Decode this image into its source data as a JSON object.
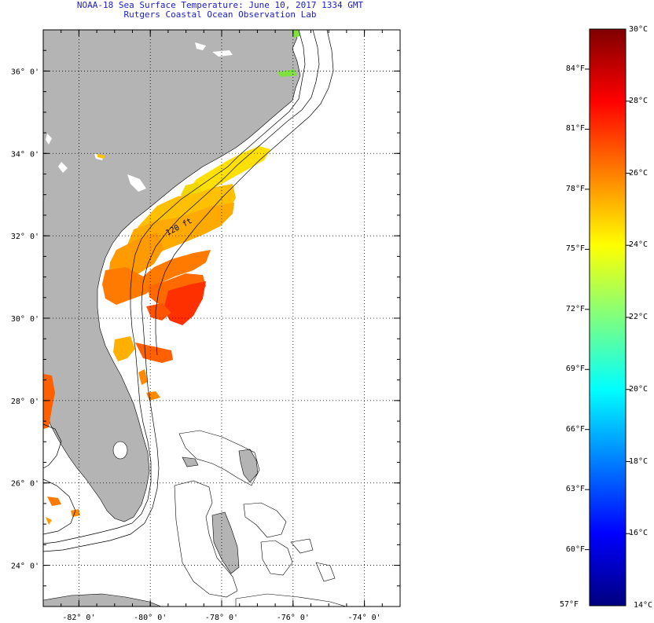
{
  "header": {
    "title": "NOAA-18 Sea Surface Temperature:  June 10, 2017 1334 GMT",
    "subtitle": "Rutgers Coastal Ocean Observation Lab"
  },
  "axes": {
    "lat_labels": [
      "36° 0'",
      "34° 0'",
      "32° 0'",
      "30° 0'",
      "28° 0'",
      "26° 0'",
      "24° 0'"
    ],
    "lon_labels": [
      "-82° 0'",
      "-80° 0'",
      "-78° 0'",
      "-76° 0'",
      "-74° 0'"
    ],
    "lat_values": [
      36,
      34,
      32,
      30,
      28,
      26,
      24
    ],
    "lon_values": [
      -82,
      -80,
      -78,
      -76,
      -74
    ],
    "lat_range": [
      23.0,
      37.0
    ],
    "lon_range": [
      -83.0,
      -73.0
    ]
  },
  "contours": {
    "depth_label": "120 ft"
  },
  "colorbar": {
    "min_label_f": "57°F",
    "min_label_c": "14°C",
    "max_label_c": "30°C",
    "celsius_ticks": [
      "28°C",
      "26°C",
      "24°C",
      "22°C",
      "20°C",
      "18°C",
      "16°C"
    ],
    "celsius_values": [
      28,
      26,
      24,
      22,
      20,
      18,
      16
    ],
    "fahrenheit_ticks": [
      "84°F",
      "81°F",
      "78°F",
      "75°F",
      "72°F",
      "69°F",
      "66°F",
      "63°F",
      "60°F"
    ],
    "fahrenheit_values": [
      84,
      81,
      78,
      75,
      72,
      69,
      66,
      63,
      60
    ],
    "range_c": [
      14,
      30
    ],
    "colors": [
      "#00007f",
      "#0000ff",
      "#007fff",
      "#00ffff",
      "#7fff7f",
      "#ffff00",
      "#ff7f00",
      "#ff0000",
      "#7f0000"
    ]
  },
  "style": {
    "land_color": "#b4b4b4",
    "title_color": "#1a1acc"
  }
}
